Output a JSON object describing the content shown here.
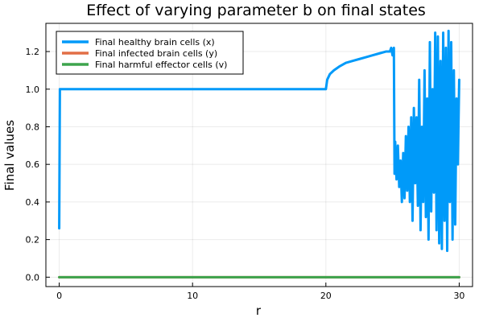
{
  "chart_data": {
    "type": "line",
    "title": "Effect of varying parameter b on final states",
    "xlabel": "r",
    "ylabel": "Final values",
    "xlim": [
      -1,
      31
    ],
    "ylim": [
      -0.05,
      1.35
    ],
    "xticks": [
      0,
      10,
      20,
      30
    ],
    "yticks": [
      0.0,
      0.2,
      0.4,
      0.6,
      0.8,
      1.0,
      1.2
    ],
    "xtick_labels": [
      "0",
      "10",
      "20",
      "30"
    ],
    "ytick_labels": [
      "0.0",
      "0.2",
      "0.4",
      "0.6",
      "0.8",
      "1.0",
      "1.2"
    ],
    "grid": true,
    "legend_position": "top-left",
    "series": [
      {
        "name": "Final healthy brain cells (x)",
        "color": "#009af9",
        "x": [
          0,
          0.05,
          0.1,
          1,
          5,
          10,
          15,
          19.9,
          20,
          20.1,
          20.3,
          20.6,
          21,
          21.5,
          22,
          22.5,
          23,
          23.5,
          24,
          24.5,
          24.8,
          24.9,
          25.0,
          25.1,
          25.15,
          25.2,
          25.3,
          25.4,
          25.5,
          25.6,
          25.7,
          25.8,
          25.9,
          26.0,
          26.1,
          26.2,
          26.3,
          26.4,
          26.5,
          26.6,
          26.7,
          26.8,
          26.9,
          27.0,
          27.1,
          27.2,
          27.3,
          27.4,
          27.5,
          27.6,
          27.7,
          27.8,
          27.9,
          28.0,
          28.1,
          28.2,
          28.3,
          28.4,
          28.5,
          28.6,
          28.7,
          28.8,
          28.9,
          29.0,
          29.1,
          29.2,
          29.3,
          29.4,
          29.5,
          29.6,
          29.7,
          29.8,
          29.9,
          30.0
        ],
        "y": [
          0.26,
          1.0,
          1.0,
          1.0,
          1.0,
          1.0,
          1.0,
          1.0,
          1.0,
          1.05,
          1.08,
          1.1,
          1.12,
          1.14,
          1.15,
          1.16,
          1.17,
          1.18,
          1.19,
          1.2,
          1.2,
          1.22,
          1.18,
          1.22,
          0.55,
          0.72,
          0.52,
          0.7,
          0.48,
          0.62,
          0.4,
          0.66,
          0.42,
          0.75,
          0.46,
          0.8,
          0.4,
          0.85,
          0.3,
          0.9,
          0.5,
          0.85,
          0.38,
          1.05,
          0.25,
          0.8,
          0.4,
          1.1,
          0.32,
          0.95,
          0.2,
          1.25,
          0.35,
          1.0,
          0.45,
          1.3,
          0.25,
          1.28,
          0.18,
          1.15,
          0.15,
          1.3,
          0.3,
          1.22,
          0.14,
          1.31,
          0.4,
          1.25,
          0.2,
          1.1,
          0.28,
          0.95,
          0.6,
          1.05
        ]
      },
      {
        "name": "Final infected brain cells (y)",
        "color": "#e26f46",
        "x": [
          0,
          30
        ],
        "y": [
          0,
          0
        ]
      },
      {
        "name": "Final harmful effector cells (v)",
        "color": "#3da44d",
        "x": [
          0,
          30
        ],
        "y": [
          0,
          0
        ]
      }
    ]
  }
}
